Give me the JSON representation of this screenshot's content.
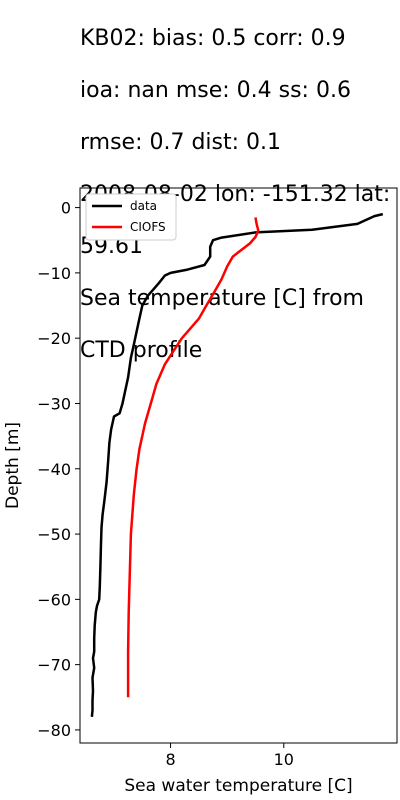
{
  "title_lines": [
    "KB02: bias: 0.5  corr: 0.9",
    "ioa: nan  mse: 0.4  ss: 0.6",
    "rmse: 0.7  dist: 0.1",
    "2008-08-02 lon: -151.32 lat:",
    "59.61",
    "Sea temperature [C] from",
    "CTD profile"
  ],
  "chart_data": {
    "type": "line",
    "xlabel": "Sea water temperature [C]",
    "ylabel": "Depth [m]",
    "xlim": [
      6.4,
      12.0
    ],
    "ylim": [
      -82,
      3
    ],
    "xticks": [
      8,
      10
    ],
    "yticks": [
      0,
      -10,
      -20,
      -30,
      -40,
      -50,
      -60,
      -70,
      -80
    ],
    "grid": false,
    "legend": "upper left",
    "series": [
      {
        "name": "data",
        "color": "#000000",
        "points": [
          [
            11.75,
            -1.0
          ],
          [
            11.6,
            -1.3
          ],
          [
            11.3,
            -2.5
          ],
          [
            10.5,
            -3.4
          ],
          [
            9.5,
            -3.8
          ],
          [
            8.9,
            -4.6
          ],
          [
            8.75,
            -5.0
          ],
          [
            8.7,
            -6.0
          ],
          [
            8.7,
            -7.5
          ],
          [
            8.6,
            -8.8
          ],
          [
            8.3,
            -9.5
          ],
          [
            8.0,
            -10.0
          ],
          [
            7.9,
            -10.4
          ],
          [
            7.8,
            -11.5
          ],
          [
            7.7,
            -12.5
          ],
          [
            7.6,
            -13.5
          ],
          [
            7.5,
            -15.0
          ],
          [
            7.45,
            -17.0
          ],
          [
            7.4,
            -19.0
          ],
          [
            7.35,
            -21.0
          ],
          [
            7.3,
            -23.0
          ],
          [
            7.25,
            -26.0
          ],
          [
            7.2,
            -28.0
          ],
          [
            7.15,
            -30.0
          ],
          [
            7.1,
            -31.5
          ],
          [
            7.0,
            -32.0
          ],
          [
            6.95,
            -34.0
          ],
          [
            6.92,
            -36.0
          ],
          [
            6.9,
            -38.5
          ],
          [
            6.87,
            -42.0
          ],
          [
            6.83,
            -45.0
          ],
          [
            6.8,
            -47.0
          ],
          [
            6.78,
            -49.0
          ],
          [
            6.77,
            -52.0
          ],
          [
            6.76,
            -55.0
          ],
          [
            6.75,
            -58.0
          ],
          [
            6.74,
            -60.0
          ],
          [
            6.7,
            -61.0
          ],
          [
            6.68,
            -62.0
          ],
          [
            6.66,
            -64.0
          ],
          [
            6.65,
            -66.0
          ],
          [
            6.65,
            -68.0
          ],
          [
            6.63,
            -69.0
          ],
          [
            6.65,
            -70.5
          ],
          [
            6.62,
            -72.0
          ],
          [
            6.63,
            -74.0
          ],
          [
            6.62,
            -75.5
          ],
          [
            6.62,
            -77.0
          ],
          [
            6.61,
            -78.0
          ]
        ]
      },
      {
        "name": "CIOFS",
        "color": "#ff0000",
        "points": [
          [
            9.5,
            -1.5
          ],
          [
            9.52,
            -2.5
          ],
          [
            9.55,
            -3.5
          ],
          [
            9.5,
            -4.5
          ],
          [
            9.4,
            -5.5
          ],
          [
            9.25,
            -6.5
          ],
          [
            9.1,
            -7.5
          ],
          [
            9.0,
            -9.0
          ],
          [
            8.9,
            -11.0
          ],
          [
            8.8,
            -12.5
          ],
          [
            8.7,
            -14.0
          ],
          [
            8.6,
            -15.5
          ],
          [
            8.5,
            -17.0
          ],
          [
            8.35,
            -18.5
          ],
          [
            8.2,
            -20.0
          ],
          [
            8.05,
            -22.0
          ],
          [
            7.9,
            -24.0
          ],
          [
            7.75,
            -27.0
          ],
          [
            7.65,
            -30.0
          ],
          [
            7.55,
            -33.0
          ],
          [
            7.45,
            -37.0
          ],
          [
            7.4,
            -40.0
          ],
          [
            7.35,
            -44.0
          ],
          [
            7.3,
            -50.0
          ],
          [
            7.28,
            -56.0
          ],
          [
            7.26,
            -62.0
          ],
          [
            7.25,
            -68.0
          ],
          [
            7.25,
            -75.0
          ]
        ]
      }
    ]
  }
}
